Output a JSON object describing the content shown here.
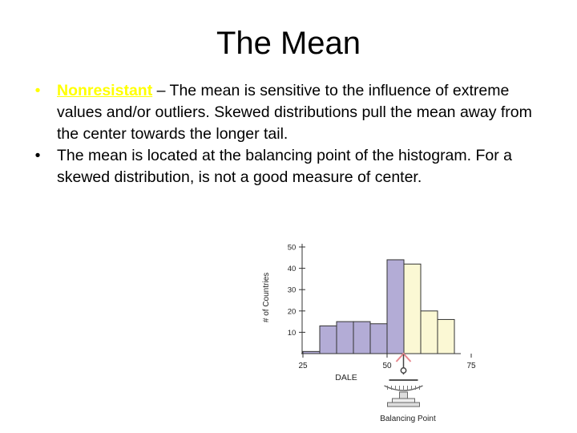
{
  "slide": {
    "title": "The Mean",
    "bullets": [
      {
        "term": "Nonresistant",
        "text": " – The mean is sensitive to the influence of extreme values and/or outliers. Skewed distributions pull the mean away from the center towards the longer tail."
      },
      {
        "text": "The mean is located at the balancing point of the histogram. For a skewed distribution, is not a good measure of center."
      }
    ],
    "term_color": "#ffff00"
  },
  "chart_data": {
    "type": "bar",
    "title": "",
    "xlabel": "DALE",
    "ylabel": "# of Countries",
    "ylim": [
      0,
      50
    ],
    "yticks": [
      10,
      20,
      30,
      40,
      50
    ],
    "xticks": [
      25,
      50,
      75
    ],
    "bin_width": 5,
    "bins": [
      {
        "start": 25,
        "value": 1,
        "side": "left"
      },
      {
        "start": 30,
        "value": 13,
        "side": "left"
      },
      {
        "start": 35,
        "value": 15,
        "side": "left"
      },
      {
        "start": 40,
        "value": 15,
        "side": "left"
      },
      {
        "start": 45,
        "value": 14,
        "side": "left"
      },
      {
        "start": 50,
        "value": 44,
        "side": "left"
      },
      {
        "start": 55,
        "value": 42,
        "side": "right"
      },
      {
        "start": 60,
        "value": 20,
        "side": "right"
      },
      {
        "start": 65,
        "value": 16,
        "side": "right"
      }
    ],
    "colors": {
      "left": "#b3acd6",
      "right": "#fbf8d4",
      "arrow": "#e8898f"
    },
    "balance_point_label": "Balancing Point",
    "grid": false
  }
}
